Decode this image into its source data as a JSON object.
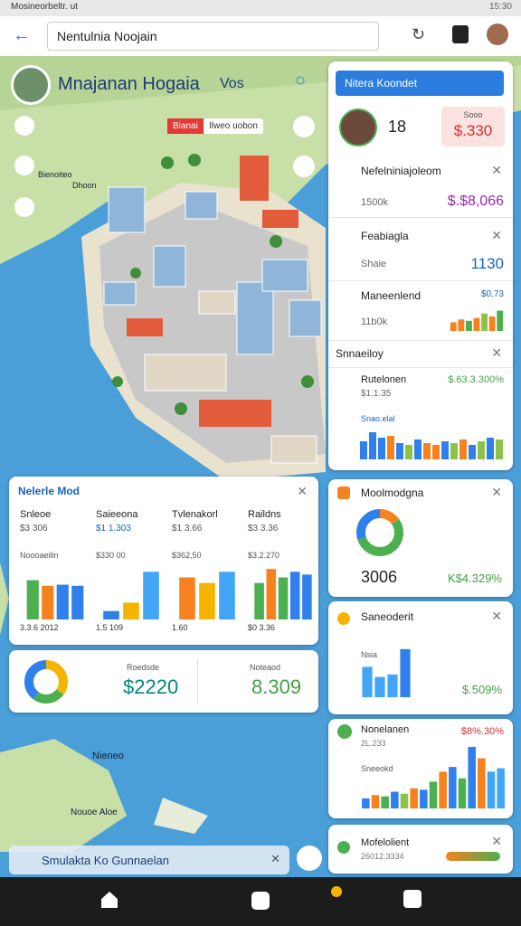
{
  "status_bar": {
    "left": "Mosineorbeltr. ut",
    "time": "15:30"
  },
  "browser": {
    "url": "Nentulnia Noojain"
  },
  "map": {
    "title": "Mnajanan Hogaia",
    "badge": "Vos",
    "pill_1": "Bianai",
    "pill_2": "Ilweo uobon",
    "label_1": "Bienoiteo",
    "label_2": "Dhoon",
    "label_3": "Nieneo",
    "label_4": "Nouoe Aloe"
  },
  "side_panel": {
    "search": "Nitera Koondet",
    "profile_value": "18",
    "price_label": "Sooo",
    "price": "$.330",
    "items": [
      {
        "title": "Nefelniniajoleom",
        "sub": "1500k",
        "value": "$.$8,066"
      },
      {
        "title": "Feabiagla",
        "sub": "Shaie",
        "value": "1130"
      },
      {
        "title": "Maneenlend",
        "sub": "11b0k",
        "value": "$0.73",
        "bars": {
          "values": [
            30,
            40,
            35,
            45,
            60,
            50,
            70
          ],
          "colors": [
            "#f5821f",
            "#f5821f",
            "#4caf50",
            "#f5821f",
            "#8bc34a",
            "#f5821f",
            "#4caf50"
          ]
        }
      }
    ],
    "section": "Snnaeiloy",
    "summary": {
      "title": "Rutelonen",
      "sub": "$1.1.35",
      "value": "$.63.3.300%",
      "label": "Snao.elal",
      "bars": {
        "values": [
          50,
          75,
          60,
          65,
          45,
          40,
          55,
          45,
          40,
          50,
          45,
          55,
          40,
          50,
          60,
          55
        ],
        "colors": [
          "#2f80ed",
          "#2f80ed",
          "#2f80ed",
          "#f5821f",
          "#2f80ed",
          "#8bc34a",
          "#2f80ed",
          "#f5821f",
          "#f5821f",
          "#2f80ed",
          "#8bc34a",
          "#f5821f",
          "#2f80ed",
          "#8bc34a",
          "#2f80ed",
          "#8bc34a"
        ]
      }
    }
  },
  "market_card": {
    "title": "Nelerle Mod",
    "columns": [
      {
        "name": "Snleoe",
        "value": "$3 306",
        "top": "Noooaeilin",
        "bottom": "3.3.6 2012",
        "bars": {
          "values": [
            70,
            60,
            62,
            60
          ],
          "colors": [
            "#4caf50",
            "#f5821f",
            "#2f80ed",
            "#2f80ed"
          ]
        }
      },
      {
        "name": "Saieeona",
        "value": "$1 1.303",
        "top": "$330 00",
        "bottom": "1.5 109",
        "bars": {
          "values": [
            15,
            30,
            85
          ],
          "colors": [
            "#2f80ed",
            "#f4b400",
            "#42a5f5"
          ]
        }
      },
      {
        "name": "Tvlenakorl",
        "value": "$1 3.66",
        "top": "$362,50",
        "bottom": "1.60",
        "bars": {
          "values": [
            75,
            65,
            85
          ],
          "colors": [
            "#f5821f",
            "#f4b400",
            "#42a5f5"
          ]
        }
      },
      {
        "name": "Raildns",
        "value": "$3 3.36",
        "top": "$3.2.270",
        "bottom": "$0 3.36",
        "bars": {
          "values": [
            65,
            90,
            75,
            85,
            80
          ],
          "colors": [
            "#4caf50",
            "#f5821f",
            "#4caf50",
            "#2f80ed",
            "#2f80ed"
          ]
        }
      }
    ]
  },
  "donut_card": {
    "label_1": "Roedsde",
    "value_1": "$2220",
    "label_2": "Noteaod",
    "value_2": "8.309",
    "donut": {
      "values": [
        35,
        25,
        40
      ],
      "colors": [
        "#f4b400",
        "#4caf50",
        "#2f80ed"
      ]
    }
  },
  "right_cards": [
    {
      "title": "Moolmodgna",
      "value": "3006",
      "change": "K$4.329%",
      "donut": {
        "values": [
          15,
          55,
          30
        ],
        "colors": [
          "#f5821f",
          "#4caf50",
          "#2f80ed"
        ]
      }
    },
    {
      "title": "Saneoderit",
      "sub": "Nsia",
      "change": "$.509%",
      "bars": {
        "values": [
          60,
          40,
          45,
          95
        ],
        "colors": [
          "#42a5f5",
          "#42a5f5",
          "#42a5f5",
          "#2f80ed"
        ]
      }
    },
    {
      "title": "Nonelanen",
      "change": "$8%.30%",
      "sub": "2L.233",
      "label": "Sneeokd",
      "bars": {
        "values": [
          15,
          20,
          18,
          25,
          22,
          30,
          28,
          40,
          55,
          62,
          45,
          92,
          75,
          55,
          60
        ],
        "colors": [
          "#2f80ed",
          "#f5821f",
          "#4caf50",
          "#2f80ed",
          "#8bc34a",
          "#f5821f",
          "#2f80ed",
          "#4caf50",
          "#f5821f",
          "#2f80ed",
          "#4caf50",
          "#2f80ed",
          "#f5821f",
          "#42a5f5",
          "#42a5f5"
        ]
      }
    },
    {
      "title": "Mofelolient",
      "sub": "26012.3334"
    }
  ],
  "search_bar": {
    "text": "Smulakta Ko Gunnaelan"
  }
}
